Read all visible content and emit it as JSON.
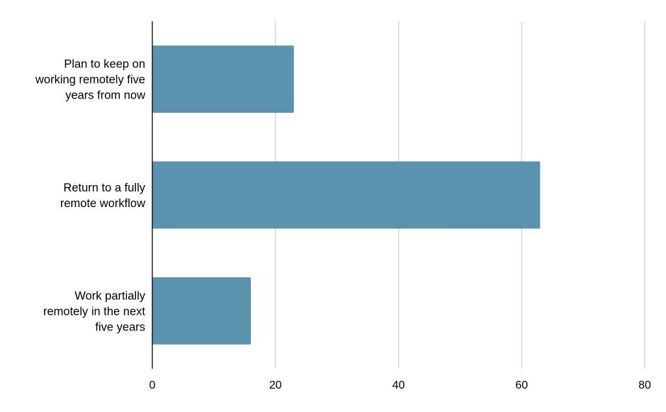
{
  "chart_data": {
    "type": "bar",
    "orientation": "horizontal",
    "title": "",
    "xlabel": "",
    "ylabel": "",
    "categories": [
      "Plan to keep on working remotely five years from now",
      "Return to a fully remote workflow",
      "Work partially remotely in the next five years"
    ],
    "category_lines": [
      [
        "Plan to keep on",
        "working remotely five",
        "years from now"
      ],
      [
        "Return to a fully",
        "remote workflow"
      ],
      [
        "Work partially",
        "remotely in the next",
        "five years"
      ]
    ],
    "values": [
      23,
      63,
      16
    ],
    "xlim": [
      0,
      80
    ],
    "xticks": [
      0,
      20,
      40,
      60,
      80
    ],
    "tick_labels": [
      "0",
      "20",
      "40",
      "60",
      "80"
    ],
    "grid": "vertical",
    "legend": "none",
    "colors": {
      "bar": "#5b93ae",
      "grid": "#cccccc",
      "axis": "#000000",
      "text": "#000000"
    }
  }
}
